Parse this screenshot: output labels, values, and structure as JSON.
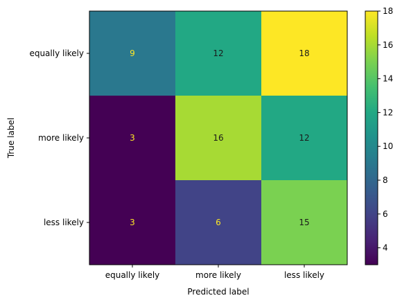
{
  "chart_data": {
    "type": "heatmap",
    "title": "",
    "xlabel": "Predicted label",
    "ylabel": "True label",
    "x_categories": [
      "equally likely",
      "more likely",
      "less likely"
    ],
    "y_categories": [
      "equally likely",
      "more likely",
      "less likely"
    ],
    "values": [
      [
        9,
        12,
        18
      ],
      [
        3,
        16,
        12
      ],
      [
        3,
        6,
        15
      ]
    ],
    "colormap": "viridis",
    "color_range": [
      3,
      18
    ],
    "colorbar_ticks": [
      4,
      6,
      8,
      10,
      12,
      14,
      16,
      18
    ],
    "text_color_light": "#fde725",
    "text_color_dark": "#1a1a1a"
  }
}
